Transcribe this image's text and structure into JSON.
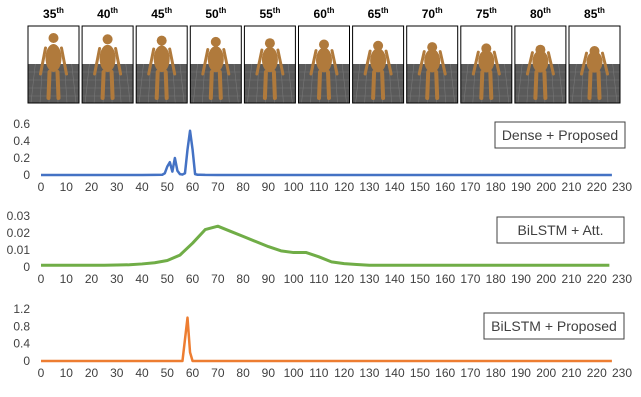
{
  "frames": [
    {
      "number": "35",
      "suffix": "th"
    },
    {
      "number": "40",
      "suffix": "th"
    },
    {
      "number": "45",
      "suffix": "th"
    },
    {
      "number": "50",
      "suffix": "th"
    },
    {
      "number": "55",
      "suffix": "th"
    },
    {
      "number": "60",
      "suffix": "th"
    },
    {
      "number": "65",
      "suffix": "th"
    },
    {
      "number": "70",
      "suffix": "th"
    },
    {
      "number": "75",
      "suffix": "th"
    },
    {
      "number": "80",
      "suffix": "th"
    },
    {
      "number": "85",
      "suffix": "th"
    }
  ],
  "chart_data": [
    {
      "type": "line",
      "x": [
        0,
        10,
        20,
        30,
        40,
        45,
        48,
        49,
        50,
        51,
        52,
        53,
        54,
        55,
        56,
        57,
        58,
        59,
        60,
        61,
        62,
        63,
        65,
        70,
        80,
        90,
        100,
        110,
        120,
        130,
        140,
        150,
        160,
        170,
        180,
        190,
        200,
        210,
        220,
        226
      ],
      "series": [
        {
          "name": "Dense + Proposed",
          "color": "#4472c4",
          "values": [
            0,
            0,
            0,
            0,
            0,
            0.001,
            0.003,
            0.02,
            0.1,
            0.15,
            0.04,
            0.2,
            0.05,
            0.01,
            0.005,
            0.02,
            0.3,
            0.52,
            0.3,
            0.01,
            0.003,
            0.003,
            0.001,
            0,
            0,
            0,
            0,
            0,
            0,
            0,
            0,
            0,
            0,
            0,
            0,
            0,
            0,
            0,
            0,
            0
          ]
        }
      ],
      "xlim": [
        0,
        230
      ],
      "xticks": [
        0,
        10,
        20,
        30,
        40,
        50,
        60,
        70,
        80,
        90,
        100,
        110,
        120,
        130,
        140,
        150,
        160,
        170,
        180,
        190,
        200,
        210,
        220,
        230
      ],
      "ylim": [
        0,
        0.6
      ],
      "yticks": [
        0,
        0.2,
        0.4,
        0.6
      ]
    },
    {
      "type": "line",
      "x": [
        0,
        5,
        10,
        15,
        20,
        25,
        30,
        35,
        40,
        45,
        50,
        55,
        60,
        65,
        70,
        75,
        80,
        85,
        90,
        95,
        100,
        105,
        110,
        115,
        120,
        125,
        130,
        135,
        140,
        145,
        150,
        155,
        160,
        165,
        170,
        175,
        180,
        185,
        190,
        195,
        200,
        205,
        210,
        215,
        220,
        225
      ],
      "series": [
        {
          "name": "BiLSTM + Att.",
          "color": "#70ad47",
          "values": [
            0.001,
            0.001,
            0.001,
            0.001,
            0.001,
            0.001,
            0.0012,
            0.0013,
            0.0018,
            0.0025,
            0.0038,
            0.007,
            0.014,
            0.022,
            0.024,
            0.021,
            0.018,
            0.015,
            0.012,
            0.0095,
            0.0085,
            0.0085,
            0.006,
            0.003,
            0.002,
            0.0015,
            0.001,
            0.001,
            0.001,
            0.001,
            0.001,
            0.001,
            0.001,
            0.001,
            0.001,
            0.001,
            0.001,
            0.001,
            0.001,
            0.001,
            0.001,
            0.001,
            0.001,
            0.001,
            0.001,
            0.001
          ]
        }
      ],
      "xlim": [
        0,
        230
      ],
      "xticks": [
        0,
        10,
        20,
        30,
        40,
        50,
        60,
        70,
        80,
        90,
        100,
        110,
        120,
        130,
        140,
        150,
        160,
        170,
        180,
        190,
        200,
        210,
        220,
        230
      ],
      "ylim": [
        0,
        0.03
      ],
      "yticks": [
        0,
        0.01,
        0.02,
        0.03
      ]
    },
    {
      "type": "line",
      "x": [
        0,
        10,
        20,
        30,
        40,
        50,
        55,
        56,
        57,
        58,
        59,
        60,
        70,
        80,
        90,
        100,
        110,
        120,
        130,
        140,
        150,
        160,
        170,
        180,
        190,
        200,
        210,
        220,
        226
      ],
      "series": [
        {
          "name": "BiLSTM + Proposed",
          "color": "#ed7d31",
          "values": [
            0,
            0,
            0,
            0,
            0,
            0,
            0,
            0,
            0.5,
            1.0,
            0.2,
            0,
            0,
            0,
            0,
            0,
            0,
            0,
            0,
            0,
            0,
            0,
            0,
            0,
            0,
            0,
            0,
            0,
            0
          ]
        }
      ],
      "xlim": [
        0,
        230
      ],
      "xticks": [
        0,
        10,
        20,
        30,
        40,
        50,
        60,
        70,
        80,
        90,
        100,
        110,
        120,
        130,
        140,
        150,
        160,
        170,
        180,
        190,
        200,
        210,
        220,
        230
      ],
      "ylim": [
        0,
        1.2
      ],
      "yticks": [
        0,
        0.4,
        0.8,
        1.2
      ]
    }
  ]
}
